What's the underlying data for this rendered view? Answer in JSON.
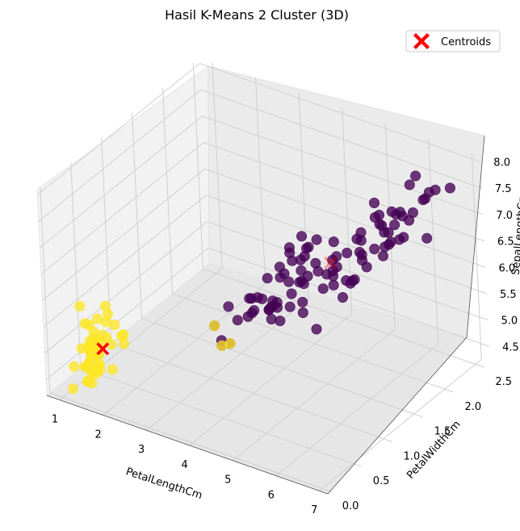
{
  "chart_data": {
    "type": "scatter3d",
    "title": "Hasil K-Means 2 Cluster (3D)",
    "xlabel": "PetalLengthCm",
    "ylabel": "PetalWidthCm",
    "zlabel": "SepalLengthCm",
    "xlim": [
      0.7,
      7.2
    ],
    "ylim": [
      -0.05,
      2.6
    ],
    "zlim": [
      4.2,
      8.1
    ],
    "xticks": [
      "1",
      "2",
      "3",
      "4",
      "5",
      "6",
      "7"
    ],
    "yticks": [
      "0.0",
      "0.5",
      "1.0",
      "1.5",
      "2.0",
      "2.5"
    ],
    "zticks": [
      "4.5",
      "5.0",
      "5.5",
      "6.0",
      "6.5",
      "7.0",
      "7.5",
      "8.0"
    ],
    "grid": true,
    "legend": {
      "position": "top-right",
      "entries": [
        "Centroids"
      ]
    },
    "colors": {
      "cluster0": "#440154",
      "cluster1": "#fde725",
      "centroid": "#ff0000"
    },
    "series": [
      {
        "cluster": 0,
        "points": [
          [
            4.7,
            1.4,
            7.0
          ],
          [
            4.5,
            1.5,
            6.4
          ],
          [
            4.9,
            1.5,
            6.9
          ],
          [
            4.0,
            1.3,
            5.5
          ],
          [
            4.6,
            1.5,
            6.5
          ],
          [
            4.5,
            1.3,
            5.7
          ],
          [
            4.7,
            1.6,
            6.3
          ],
          [
            3.3,
            1.0,
            4.9
          ],
          [
            4.6,
            1.3,
            6.6
          ],
          [
            3.9,
            1.4,
            5.2
          ],
          [
            3.5,
            1.0,
            5.0
          ],
          [
            4.2,
            1.5,
            5.9
          ],
          [
            4.0,
            1.0,
            6.0
          ],
          [
            4.7,
            1.4,
            6.1
          ],
          [
            3.6,
            1.3,
            5.6
          ],
          [
            4.4,
            1.4,
            6.7
          ],
          [
            4.5,
            1.5,
            5.6
          ],
          [
            4.1,
            1.0,
            5.8
          ],
          [
            4.5,
            1.5,
            6.2
          ],
          [
            3.9,
            1.1,
            5.6
          ],
          [
            4.8,
            1.8,
            5.9
          ],
          [
            4.0,
            1.3,
            6.1
          ],
          [
            4.9,
            1.5,
            6.3
          ],
          [
            4.7,
            1.2,
            6.1
          ],
          [
            4.3,
            1.3,
            6.4
          ],
          [
            4.4,
            1.4,
            6.6
          ],
          [
            4.8,
            1.4,
            6.8
          ],
          [
            5.0,
            1.7,
            6.7
          ],
          [
            4.5,
            1.5,
            6.0
          ],
          [
            3.5,
            1.0,
            5.7
          ],
          [
            3.8,
            1.1,
            5.5
          ],
          [
            3.7,
            1.0,
            5.5
          ],
          [
            3.9,
            1.2,
            5.8
          ],
          [
            5.1,
            1.6,
            6.0
          ],
          [
            4.5,
            1.5,
            5.4
          ],
          [
            4.5,
            1.6,
            6.0
          ],
          [
            4.7,
            1.5,
            6.7
          ],
          [
            4.4,
            1.3,
            6.3
          ],
          [
            4.1,
            1.3,
            5.6
          ],
          [
            4.0,
            1.3,
            5.5
          ],
          [
            4.4,
            1.2,
            5.5
          ],
          [
            4.6,
            1.4,
            6.1
          ],
          [
            4.0,
            1.2,
            5.8
          ],
          [
            3.3,
            1.0,
            5.0
          ],
          [
            4.2,
            1.3,
            5.6
          ],
          [
            4.2,
            1.2,
            5.7
          ],
          [
            4.2,
            1.3,
            5.7
          ],
          [
            4.3,
            1.3,
            6.2
          ],
          [
            3.0,
            1.1,
            5.1
          ],
          [
            4.1,
            1.3,
            5.7
          ],
          [
            6.0,
            2.5,
            6.3
          ],
          [
            5.1,
            1.9,
            5.8
          ],
          [
            5.9,
            2.1,
            7.1
          ],
          [
            5.6,
            1.8,
            6.3
          ],
          [
            5.8,
            2.2,
            6.5
          ],
          [
            6.6,
            2.1,
            7.6
          ],
          [
            4.5,
            1.7,
            4.9
          ],
          [
            6.3,
            1.8,
            7.3
          ],
          [
            5.8,
            1.8,
            6.7
          ],
          [
            6.1,
            2.5,
            7.2
          ],
          [
            5.1,
            2.0,
            6.5
          ],
          [
            5.3,
            1.9,
            6.4
          ],
          [
            5.5,
            2.1,
            6.8
          ],
          [
            5.0,
            2.0,
            5.7
          ],
          [
            5.1,
            2.4,
            5.8
          ],
          [
            5.3,
            2.3,
            6.4
          ],
          [
            5.5,
            1.8,
            6.5
          ],
          [
            6.7,
            2.2,
            7.7
          ],
          [
            6.9,
            2.3,
            7.7
          ],
          [
            5.0,
            1.5,
            6.0
          ],
          [
            5.7,
            2.3,
            6.9
          ],
          [
            4.9,
            2.0,
            5.6
          ],
          [
            6.7,
            2.0,
            7.7
          ],
          [
            4.9,
            1.8,
            6.3
          ],
          [
            5.7,
            2.1,
            6.7
          ],
          [
            6.0,
            1.8,
            7.2
          ],
          [
            4.8,
            1.8,
            6.2
          ],
          [
            4.9,
            1.8,
            6.1
          ],
          [
            5.6,
            2.1,
            6.4
          ],
          [
            5.8,
            1.6,
            7.2
          ],
          [
            6.1,
            1.9,
            7.4
          ],
          [
            6.4,
            2.0,
            7.9
          ],
          [
            5.6,
            2.2,
            6.4
          ],
          [
            5.1,
            1.5,
            6.3
          ],
          [
            5.6,
            1.4,
            6.1
          ],
          [
            6.1,
            2.3,
            7.7
          ],
          [
            5.6,
            2.4,
            6.3
          ],
          [
            5.5,
            1.8,
            6.4
          ],
          [
            4.8,
            1.8,
            6.0
          ],
          [
            5.4,
            2.1,
            6.9
          ],
          [
            5.6,
            2.4,
            6.7
          ],
          [
            5.1,
            2.3,
            6.9
          ],
          [
            5.9,
            2.3,
            6.8
          ],
          [
            5.7,
            2.5,
            6.7
          ],
          [
            5.2,
            2.3,
            6.7
          ],
          [
            5.0,
            1.9,
            6.3
          ],
          [
            5.2,
            2.0,
            6.5
          ],
          [
            5.4,
            2.3,
            6.2
          ],
          [
            5.1,
            1.8,
            5.9
          ]
        ]
      },
      {
        "cluster": 1,
        "points": [
          [
            1.4,
            0.2,
            5.1
          ],
          [
            1.4,
            0.2,
            4.9
          ],
          [
            1.3,
            0.2,
            4.7
          ],
          [
            1.5,
            0.2,
            4.6
          ],
          [
            1.4,
            0.2,
            5.0
          ],
          [
            1.7,
            0.4,
            5.4
          ],
          [
            1.4,
            0.3,
            4.6
          ],
          [
            1.5,
            0.2,
            5.0
          ],
          [
            1.4,
            0.2,
            4.4
          ],
          [
            1.5,
            0.1,
            4.9
          ],
          [
            1.5,
            0.2,
            5.4
          ],
          [
            1.6,
            0.2,
            4.8
          ],
          [
            1.4,
            0.1,
            4.8
          ],
          [
            1.1,
            0.1,
            4.3
          ],
          [
            1.2,
            0.2,
            5.8
          ],
          [
            1.5,
            0.4,
            5.7
          ],
          [
            1.3,
            0.4,
            5.4
          ],
          [
            1.4,
            0.3,
            5.1
          ],
          [
            1.7,
            0.3,
            5.7
          ],
          [
            1.5,
            0.3,
            5.1
          ],
          [
            1.7,
            0.2,
            5.4
          ],
          [
            1.5,
            0.4,
            5.1
          ],
          [
            1.0,
            0.2,
            4.6
          ],
          [
            1.7,
            0.5,
            5.1
          ],
          [
            1.9,
            0.2,
            4.8
          ],
          [
            1.6,
            0.2,
            5.0
          ],
          [
            1.6,
            0.4,
            5.0
          ],
          [
            1.5,
            0.2,
            5.2
          ],
          [
            1.4,
            0.2,
            5.2
          ],
          [
            1.6,
            0.2,
            4.7
          ],
          [
            1.6,
            0.2,
            4.8
          ],
          [
            1.5,
            0.4,
            5.4
          ],
          [
            1.5,
            0.1,
            5.2
          ],
          [
            1.4,
            0.2,
            5.5
          ],
          [
            1.5,
            0.1,
            4.9
          ],
          [
            1.2,
            0.2,
            5.0
          ],
          [
            1.3,
            0.2,
            5.5
          ],
          [
            1.5,
            0.1,
            4.9
          ],
          [
            1.3,
            0.2,
            4.4
          ],
          [
            1.5,
            0.2,
            5.1
          ],
          [
            1.3,
            0.3,
            5.0
          ],
          [
            1.3,
            0.3,
            4.5
          ],
          [
            1.3,
            0.2,
            4.4
          ],
          [
            1.6,
            0.6,
            5.0
          ],
          [
            1.9,
            0.4,
            5.1
          ],
          [
            1.4,
            0.3,
            4.8
          ],
          [
            1.6,
            0.2,
            5.1
          ],
          [
            1.4,
            0.2,
            4.6
          ],
          [
            1.5,
            0.2,
            5.3
          ],
          [
            1.4,
            0.2,
            5.0
          ],
          [
            3.5,
            1.0,
            5.0
          ],
          [
            3.0,
            1.1,
            5.1
          ],
          [
            3.3,
            1.0,
            4.9
          ]
        ]
      }
    ],
    "centroids": [
      [
        1.56,
        0.29,
        5.01
      ],
      [
        4.93,
        1.68,
        6.3
      ]
    ]
  }
}
